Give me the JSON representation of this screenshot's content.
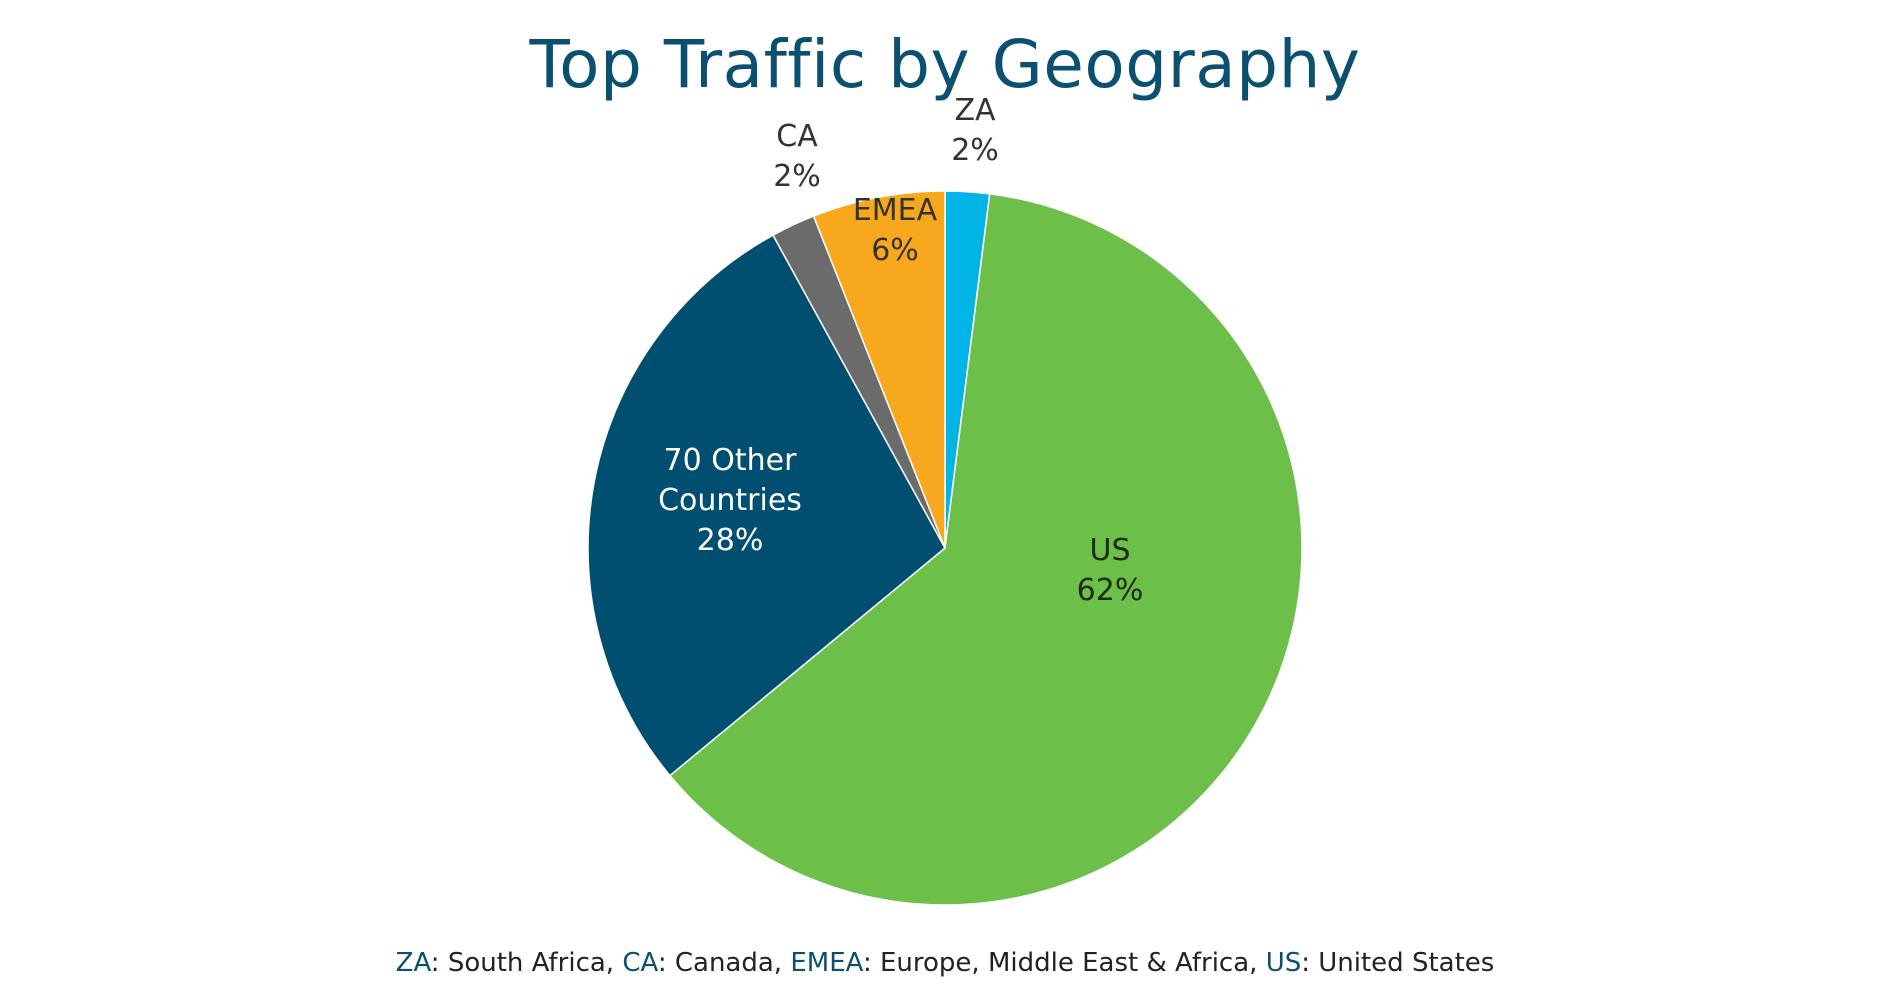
{
  "chart_data": {
    "type": "pie",
    "title": "Top Traffic by Geography",
    "start": "12 o'clock",
    "direction": "clockwise",
    "slices": [
      {
        "label": "ZA",
        "value": 2,
        "value_label": "2%",
        "color": "#00b5e6"
      },
      {
        "label": "US",
        "value": 62,
        "value_label": "62%",
        "color": "#6cc04a"
      },
      {
        "label": "70 Other Countries",
        "value": 28,
        "value_label": "28%",
        "color": "#004e70"
      },
      {
        "label": "CA",
        "value": 2,
        "value_label": "2%",
        "color": "#6b6b6b"
      },
      {
        "label": "EMEA",
        "value": 6,
        "value_label": "6%",
        "color": "#f8a81c"
      }
    ],
    "footnote": [
      {
        "abbr": "ZA",
        "text": ": South Africa, "
      },
      {
        "abbr": "CA",
        "text": ": Canada, "
      },
      {
        "abbr": "EMEA",
        "text": ": Europe, Middle East & Africa, "
      },
      {
        "abbr": "US",
        "text": ": United States"
      }
    ]
  }
}
